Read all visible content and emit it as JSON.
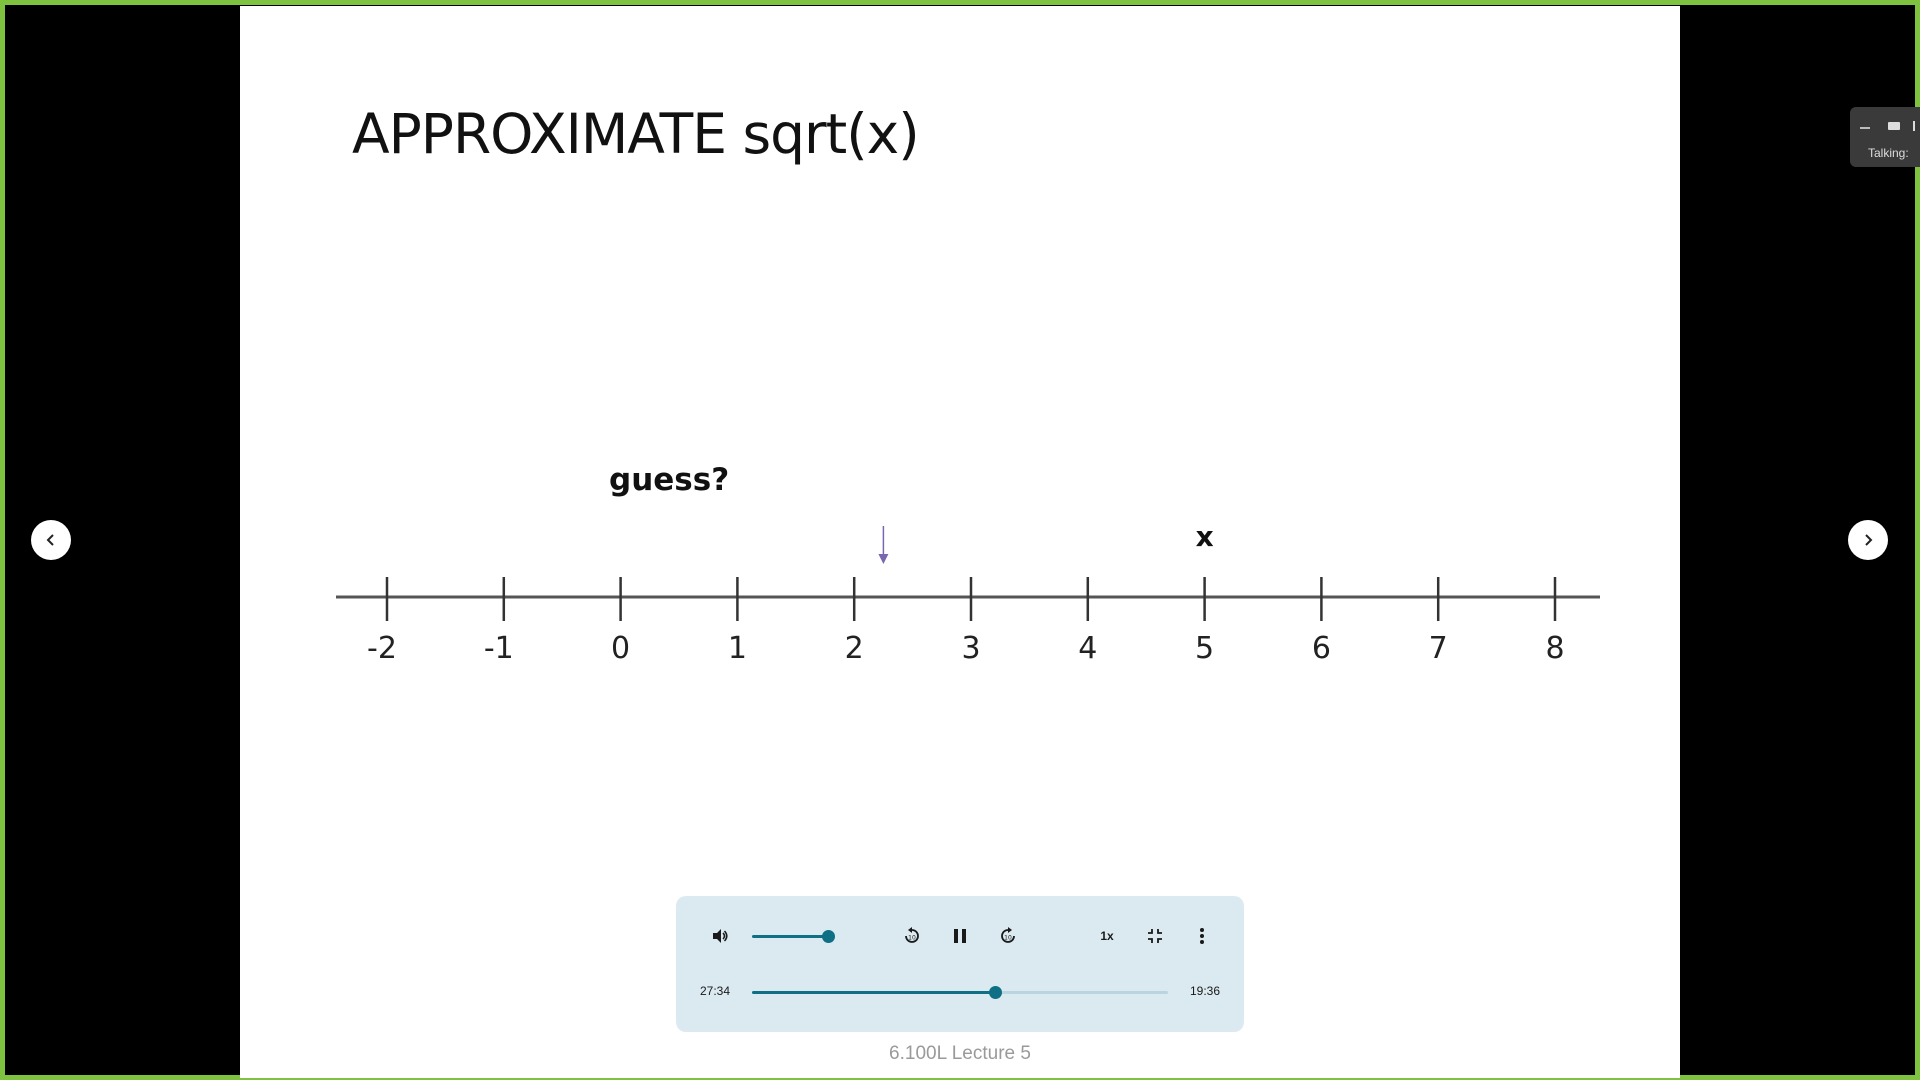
{
  "slide": {
    "title": "APPROXIMATE sqrt(x)",
    "guess_label": "guess?",
    "x_label": "x",
    "ticks": [
      "-2",
      "-1",
      "0",
      "1",
      "2",
      "3",
      "4",
      "5",
      "6",
      "7",
      "8"
    ],
    "guess_marker_value": 2.25,
    "x_marker_value": 5
  },
  "player": {
    "volume_level": 0.75,
    "speed_label": "1x",
    "time_current": "27:34",
    "time_total": "19:36",
    "progress": 0.585
  },
  "caption": "6.100L Lecture 5",
  "mini_widget": {
    "label": "Talking:"
  },
  "icons": {
    "prev": "chevron-left-icon",
    "next": "chevron-right-icon",
    "volume": "volume-icon",
    "rewind": "rewind-10-icon",
    "pause": "pause-icon",
    "forward": "forward-10-icon",
    "exit_fullscreen": "exit-fullscreen-icon",
    "more": "more-vertical-icon"
  },
  "colors": {
    "frame_border": "#7ec23f",
    "player_bg": "#dbeaf1",
    "accent": "#0e6f85",
    "guess_arrow": "#7a67b0"
  }
}
